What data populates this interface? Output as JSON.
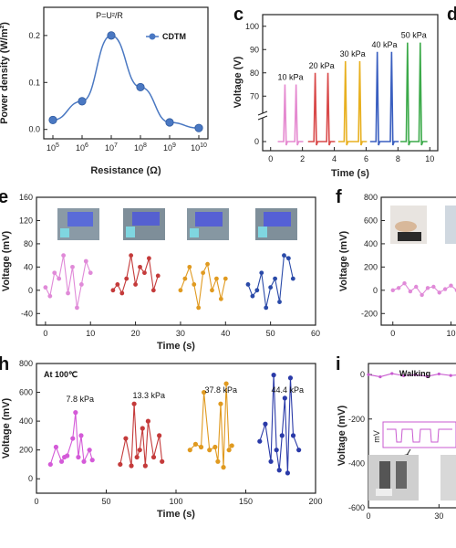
{
  "panel_letters": [
    "c",
    "e",
    "f",
    "h",
    "i",
    "d"
  ],
  "chart_data": [
    {
      "id": "b",
      "type": "line",
      "x_scale": "log",
      "xlabel": "Resistance (Ω)",
      "ylabel": "Power density (W/m²)",
      "annotation": "P=U²/R",
      "legend": "CDTM",
      "legend_position": "top-right",
      "x_tick_labels": [
        "10^5",
        "10^6",
        "10^7",
        "10^8",
        "10^9",
        "10^10"
      ],
      "y_tick_labels": [
        "0.0",
        "0.1",
        "0.2"
      ],
      "xlim": [
        100000,
        10000000000
      ],
      "ylim": [
        -0.02,
        0.26
      ],
      "color": "#4a78c2",
      "series": [
        {
          "name": "CDTM",
          "x": [
            100000,
            1000000,
            10000000,
            100000000,
            1000000000,
            10000000000
          ],
          "y": [
            0.02,
            0.06,
            0.2,
            0.09,
            0.015,
            0.003
          ]
        }
      ]
    },
    {
      "id": "c",
      "type": "line",
      "xlabel": "Time (s)",
      "ylabel": "Voltage (V)",
      "x_tick_labels": [
        "0",
        "2",
        "4",
        "6",
        "8",
        "10"
      ],
      "y_tick_labels": [
        "0",
        "70",
        "80",
        "90",
        "100"
      ],
      "xlim": [
        -0.5,
        10.5
      ],
      "ylim": [
        -5,
        105
      ],
      "axis_break": true,
      "groups": [
        {
          "label": "10 kPa",
          "color": "#e58ad0",
          "peaks": [
            0.9,
            1.6
          ],
          "peak_voltage": 75
        },
        {
          "label": "20 kPa",
          "color": "#d94a4a",
          "peaks": [
            2.8,
            3.6
          ],
          "peak_voltage": 80
        },
        {
          "label": "30 kPa",
          "color": "#e8b020",
          "peaks": [
            4.7,
            5.6
          ],
          "peak_voltage": 85
        },
        {
          "label": "40 kPa",
          "color": "#3a5fc0",
          "peaks": [
            6.7,
            7.6
          ],
          "peak_voltage": 89
        },
        {
          "label": "50 kPa",
          "color": "#3caa4a",
          "peaks": [
            8.6,
            9.4
          ],
          "peak_voltage": 93
        }
      ]
    },
    {
      "id": "e",
      "type": "line",
      "xlabel": "Time (s)",
      "ylabel": "Voltage (mV)",
      "x_tick_labels": [
        "0",
        "10",
        "20",
        "30",
        "40",
        "50",
        "60"
      ],
      "y_tick_labels": [
        "-40",
        "0",
        "40",
        "80",
        "120",
        "160"
      ],
      "xlim": [
        -2,
        60
      ],
      "ylim": [
        -60,
        160
      ],
      "series": [
        {
          "color": "#e08ad8",
          "x": [
            0,
            1,
            2,
            3,
            4,
            5,
            6,
            7,
            8,
            9,
            10
          ],
          "y": [
            5,
            -10,
            30,
            20,
            60,
            -5,
            40,
            -30,
            10,
            50,
            30
          ]
        },
        {
          "color": "#c43a3a",
          "x": [
            15,
            16,
            17,
            18,
            19,
            20,
            21,
            22,
            23,
            24,
            25
          ],
          "y": [
            0,
            10,
            -5,
            20,
            60,
            10,
            40,
            30,
            55,
            0,
            25
          ]
        },
        {
          "color": "#e09a20",
          "x": [
            30,
            31,
            32,
            33,
            34,
            35,
            36,
            37,
            38,
            39,
            40
          ],
          "y": [
            0,
            20,
            40,
            10,
            -30,
            30,
            45,
            0,
            20,
            -15,
            20
          ]
        },
        {
          "color": "#2a4aa8",
          "x": [
            45,
            46,
            47,
            48,
            49,
            50,
            51,
            52,
            53,
            54,
            55
          ],
          "y": [
            10,
            -10,
            0,
            30,
            -30,
            5,
            20,
            -20,
            60,
            55,
            20
          ]
        }
      ]
    },
    {
      "id": "f",
      "type": "line",
      "ylabel": "Voltage (mV)",
      "x_tick_labels": [
        "0",
        "10"
      ],
      "y_tick_labels": [
        "-200",
        "0",
        "200",
        "400",
        "600",
        "800"
      ],
      "xlim": [
        -2,
        14
      ],
      "ylim": [
        -300,
        800
      ],
      "series": [
        {
          "color": "#e08ad8",
          "x": [
            0,
            1,
            2,
            3,
            4,
            5,
            6,
            7,
            8,
            9,
            10,
            11,
            12
          ],
          "y": [
            0,
            20,
            60,
            -10,
            30,
            -40,
            20,
            30,
            -20,
            10,
            40,
            0,
            20
          ]
        }
      ]
    },
    {
      "id": "h",
      "type": "line",
      "xlabel": "Time (s)",
      "ylabel": "Voltage (mV)",
      "annotation": "At 100℃",
      "x_tick_labels": [
        "0",
        "50",
        "100",
        "150",
        "200"
      ],
      "y_tick_labels": [
        "0",
        "200",
        "400",
        "600",
        "800"
      ],
      "xlim": [
        0,
        200
      ],
      "ylim": [
        -100,
        800
      ],
      "series": [
        {
          "name": "7.8 kPa",
          "color": "#d45ad8",
          "x": [
            10,
            14,
            18,
            20,
            22,
            26,
            28,
            30,
            32,
            34,
            38,
            40
          ],
          "y": [
            100,
            220,
            120,
            150,
            160,
            280,
            460,
            150,
            300,
            120,
            200,
            130
          ]
        },
        {
          "name": "13.3 kPa",
          "color": "#c43a3a",
          "x": [
            60,
            64,
            68,
            70,
            72,
            74,
            76,
            78,
            80,
            84,
            88,
            90
          ],
          "y": [
            100,
            280,
            90,
            520,
            150,
            200,
            350,
            90,
            400,
            150,
            300,
            120
          ]
        },
        {
          "name": "37.8 kPa",
          "color": "#e09a20",
          "x": [
            110,
            114,
            118,
            120,
            124,
            128,
            130,
            132,
            134,
            136,
            138,
            140
          ],
          "y": [
            200,
            240,
            220,
            600,
            200,
            220,
            120,
            520,
            80,
            660,
            200,
            230
          ]
        },
        {
          "name": "44.4 kPa",
          "color": "#2a3aa8",
          "x": [
            160,
            164,
            168,
            170,
            172,
            174,
            176,
            178,
            180,
            182,
            184,
            188
          ],
          "y": [
            260,
            380,
            120,
            720,
            200,
            60,
            300,
            560,
            40,
            700,
            300,
            200
          ]
        }
      ]
    },
    {
      "id": "i",
      "type": "line",
      "ylabel": "Voltage (mV)",
      "annotation": "Walking",
      "inset_unit": "mV",
      "x_tick_labels": [
        "0",
        "30"
      ],
      "y_tick_labels": [
        "-600",
        "-400",
        "-200",
        "0"
      ],
      "xlim": [
        0,
        45
      ],
      "ylim": [
        -600,
        50
      ],
      "series": [
        {
          "color": "#c85ad0",
          "x": [
            0,
            5,
            10,
            15,
            20,
            25,
            30,
            35,
            40,
            45
          ],
          "y": [
            0,
            -10,
            5,
            -5,
            0,
            -8,
            3,
            -4,
            0,
            -6
          ]
        }
      ]
    }
  ]
}
